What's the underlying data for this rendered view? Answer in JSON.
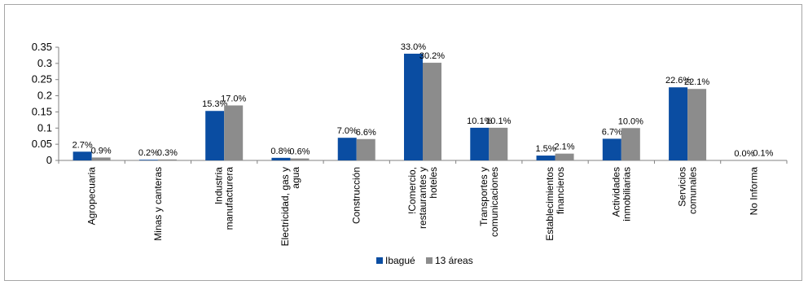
{
  "chart_data": {
    "type": "bar",
    "categories": [
      [
        "Agropecuaria"
      ],
      [
        "Minas y canteras"
      ],
      [
        "Industria",
        "manufacturera"
      ],
      [
        "Electricidad, gas y",
        "agua"
      ],
      [
        "Construcción"
      ],
      [
        "!Comercio,",
        "restaurantes y",
        "hoteles"
      ],
      [
        "Transportes y",
        "comunicaciones"
      ],
      [
        "Establecimientos",
        "financieros"
      ],
      [
        "Actividades",
        "inmobiliarias"
      ],
      [
        "Servicios",
        "comunales"
      ],
      [
        "No Informa"
      ]
    ],
    "series": [
      {
        "name": "Ibagué",
        "color": "#0a4da2",
        "values": [
          0.027,
          0.002,
          0.153,
          0.008,
          0.07,
          0.33,
          0.101,
          0.015,
          0.067,
          0.226,
          0.0
        ],
        "labels": [
          "2.7%",
          "0.2%",
          "15.3%",
          "0.8%",
          "7.0%",
          "33.0%",
          "10.1%",
          "1.5%",
          "6.7%",
          "22.6%",
          "0.0%"
        ]
      },
      {
        "name": "13 áreas",
        "color": "#8c8c8c",
        "values": [
          0.009,
          0.003,
          0.17,
          0.006,
          0.066,
          0.302,
          0.101,
          0.021,
          0.1,
          0.221,
          0.001
        ],
        "labels": [
          "0.9%",
          "0.3%",
          "17.0%",
          "0.6%",
          "6.6%",
          "30.2%",
          "10.1%",
          "2.1%",
          "10.0%",
          "22.1%",
          "0.1%"
        ]
      }
    ],
    "yticks": [
      "0",
      "0.05",
      "0.1",
      "0.15",
      "0.2",
      "0.25",
      "0.3",
      "0.35"
    ],
    "ylim": [
      0,
      0.35
    ],
    "grid": false,
    "legend_position": "bottom"
  }
}
